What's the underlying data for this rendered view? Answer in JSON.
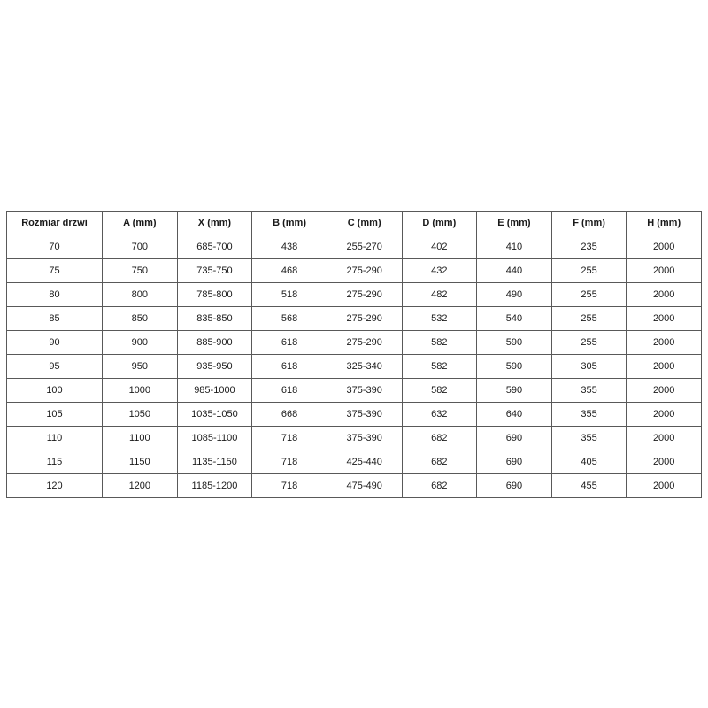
{
  "page": {
    "background_color": "#ffffff"
  },
  "colors": {
    "table_border": "#595959",
    "text": "#1a1a1a",
    "cell_background": "#ffffff"
  },
  "chart_data": {
    "type": "table",
    "title": "",
    "columns": [
      "Rozmiar drzwi",
      "A (mm)",
      "X (mm)",
      "B (mm)",
      "C (mm)",
      "D (mm)",
      "E (mm)",
      "F (mm)",
      "H (mm)"
    ],
    "rows": [
      [
        "70",
        "700",
        "685-700",
        "438",
        "255-270",
        "402",
        "410",
        "235",
        "2000"
      ],
      [
        "75",
        "750",
        "735-750",
        "468",
        "275-290",
        "432",
        "440",
        "255",
        "2000"
      ],
      [
        "80",
        "800",
        "785-800",
        "518",
        "275-290",
        "482",
        "490",
        "255",
        "2000"
      ],
      [
        "85",
        "850",
        "835-850",
        "568",
        "275-290",
        "532",
        "540",
        "255",
        "2000"
      ],
      [
        "90",
        "900",
        "885-900",
        "618",
        "275-290",
        "582",
        "590",
        "255",
        "2000"
      ],
      [
        "95",
        "950",
        "935-950",
        "618",
        "325-340",
        "582",
        "590",
        "305",
        "2000"
      ],
      [
        "100",
        "1000",
        "985-1000",
        "618",
        "375-390",
        "582",
        "590",
        "355",
        "2000"
      ],
      [
        "105",
        "1050",
        "1035-1050",
        "668",
        "375-390",
        "632",
        "640",
        "355",
        "2000"
      ],
      [
        "110",
        "1100",
        "1085-1100",
        "718",
        "375-390",
        "682",
        "690",
        "355",
        "2000"
      ],
      [
        "115",
        "1150",
        "1135-1150",
        "718",
        "425-440",
        "682",
        "690",
        "405",
        "2000"
      ],
      [
        "120",
        "1200",
        "1185-1200",
        "718",
        "475-490",
        "682",
        "690",
        "455",
        "2000"
      ]
    ]
  }
}
